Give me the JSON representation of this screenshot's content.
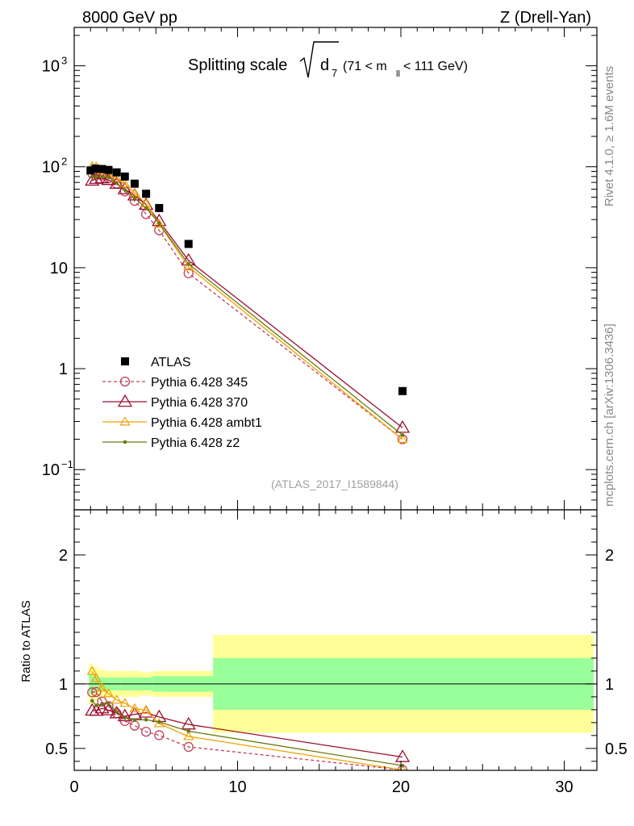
{
  "header": {
    "left": "8000 GeV pp",
    "right": "Z (Drell-Yan)"
  },
  "side_labels": {
    "rivet": "Rivet 4.1.0, ≥ 1.6M events",
    "mcplots": "mcplots.cern.ch [arXiv:1306.3436]"
  },
  "chart_data": {
    "type": "scatter",
    "title_main": "Splitting scale",
    "title_sqrt_symbol": "√",
    "title_d": "d",
    "title_d_sub": "7",
    "title_range_pre": "(71 < m",
    "title_range_sub": "ll",
    "title_range_post": " < 111 GeV)",
    "analysis_id": "(ATLAS_2017_I1589844)",
    "x_range": [
      0,
      32
    ],
    "top_panel": {
      "yscale": "log",
      "ylim": [
        0.04,
        2400
      ],
      "y_tick_labels": [
        {
          "value": 1000,
          "base": "10",
          "exp": "3"
        },
        {
          "value": 100,
          "base": "10",
          "exp": "2"
        },
        {
          "value": 10,
          "base": "10",
          "exp": ""
        },
        {
          "value": 1,
          "base": "1",
          "exp": ""
        },
        {
          "value": 0.1,
          "base": "10",
          "exp": "−1"
        }
      ]
    },
    "ratio_panel": {
      "ylabel": "Ratio to ATLAS",
      "ylim": [
        0.33,
        2.35
      ],
      "y_tick_labels": [
        "2",
        "1",
        "0.5"
      ],
      "y_tick_values": [
        2,
        1,
        0.5
      ]
    },
    "x_tick_labels": [
      "0",
      "10",
      "20",
      "30"
    ],
    "x_tick_values": [
      0,
      10,
      20,
      30
    ],
    "data": {
      "name": "ATLAS",
      "color": "#000000",
      "x": [
        1.0,
        1.3,
        1.7,
        2.1,
        2.6,
        3.1,
        3.7,
        4.4,
        5.2,
        7.0,
        20.1
      ],
      "y": [
        92,
        96,
        95,
        93,
        88,
        80,
        68,
        54,
        39,
        17.2,
        0.6
      ],
      "xlow": [
        0.9,
        1.15,
        1.5,
        1.9,
        2.35,
        2.85,
        3.4,
        4.05,
        4.8,
        5.6,
        8.5
      ],
      "xhigh": [
        1.15,
        1.5,
        1.9,
        2.35,
        2.85,
        3.4,
        4.05,
        4.8,
        5.6,
        8.5,
        31.8
      ]
    },
    "bands": {
      "inner_color": "#99ff99",
      "outer_color": "#ffff99",
      "inner": [
        0.08,
        0.06,
        0.05,
        0.05,
        0.05,
        0.05,
        0.05,
        0.05,
        0.06,
        0.06,
        0.2
      ],
      "outer": [
        0.16,
        0.13,
        0.11,
        0.1,
        0.1,
        0.1,
        0.1,
        0.09,
        0.1,
        0.1,
        0.38
      ]
    },
    "series": [
      {
        "name": "Pythia 6.428 345",
        "color": "#c0405a",
        "marker": "circle",
        "dashed": true,
        "x": [
          1.1,
          1.35,
          1.7,
          2.1,
          2.6,
          3.1,
          3.7,
          4.4,
          5.2,
          7.0,
          20.1
        ],
        "y": [
          86,
          90,
          82,
          77,
          68,
          57,
          46,
          34,
          23.5,
          8.8,
          0.2
        ]
      },
      {
        "name": "Pythia 6.428 370",
        "color": "#9b1030",
        "marker": "triangle",
        "dashed": false,
        "x": [
          1.1,
          1.35,
          1.7,
          2.1,
          2.6,
          3.1,
          3.7,
          4.4,
          5.2,
          7.0,
          20.1
        ],
        "y": [
          73,
          76,
          77,
          74,
          68,
          60,
          52,
          42,
          29,
          11.8,
          0.26
        ]
      },
      {
        "name": "Pythia 6.428 ambt1",
        "color": "#f0a000",
        "marker": "triangle-small",
        "dashed": false,
        "x": [
          1.1,
          1.35,
          1.7,
          2.1,
          2.6,
          3.1,
          3.7,
          4.4,
          5.2,
          7.0,
          20.1
        ],
        "y": [
          101,
          100,
          92,
          86,
          77,
          68,
          55,
          43,
          27,
          10.2,
          0.2
        ]
      },
      {
        "name": "Pythia 6.428 z2",
        "color": "#6b7a10",
        "marker": "dot",
        "dashed": false,
        "x": [
          1.1,
          1.35,
          1.7,
          2.1,
          2.6,
          3.1,
          3.7,
          4.4,
          5.2,
          7.0,
          20.1
        ],
        "y": [
          80,
          80,
          80,
          79,
          69,
          59,
          49,
          39,
          27.5,
          10.9,
          0.22
        ]
      }
    ]
  }
}
